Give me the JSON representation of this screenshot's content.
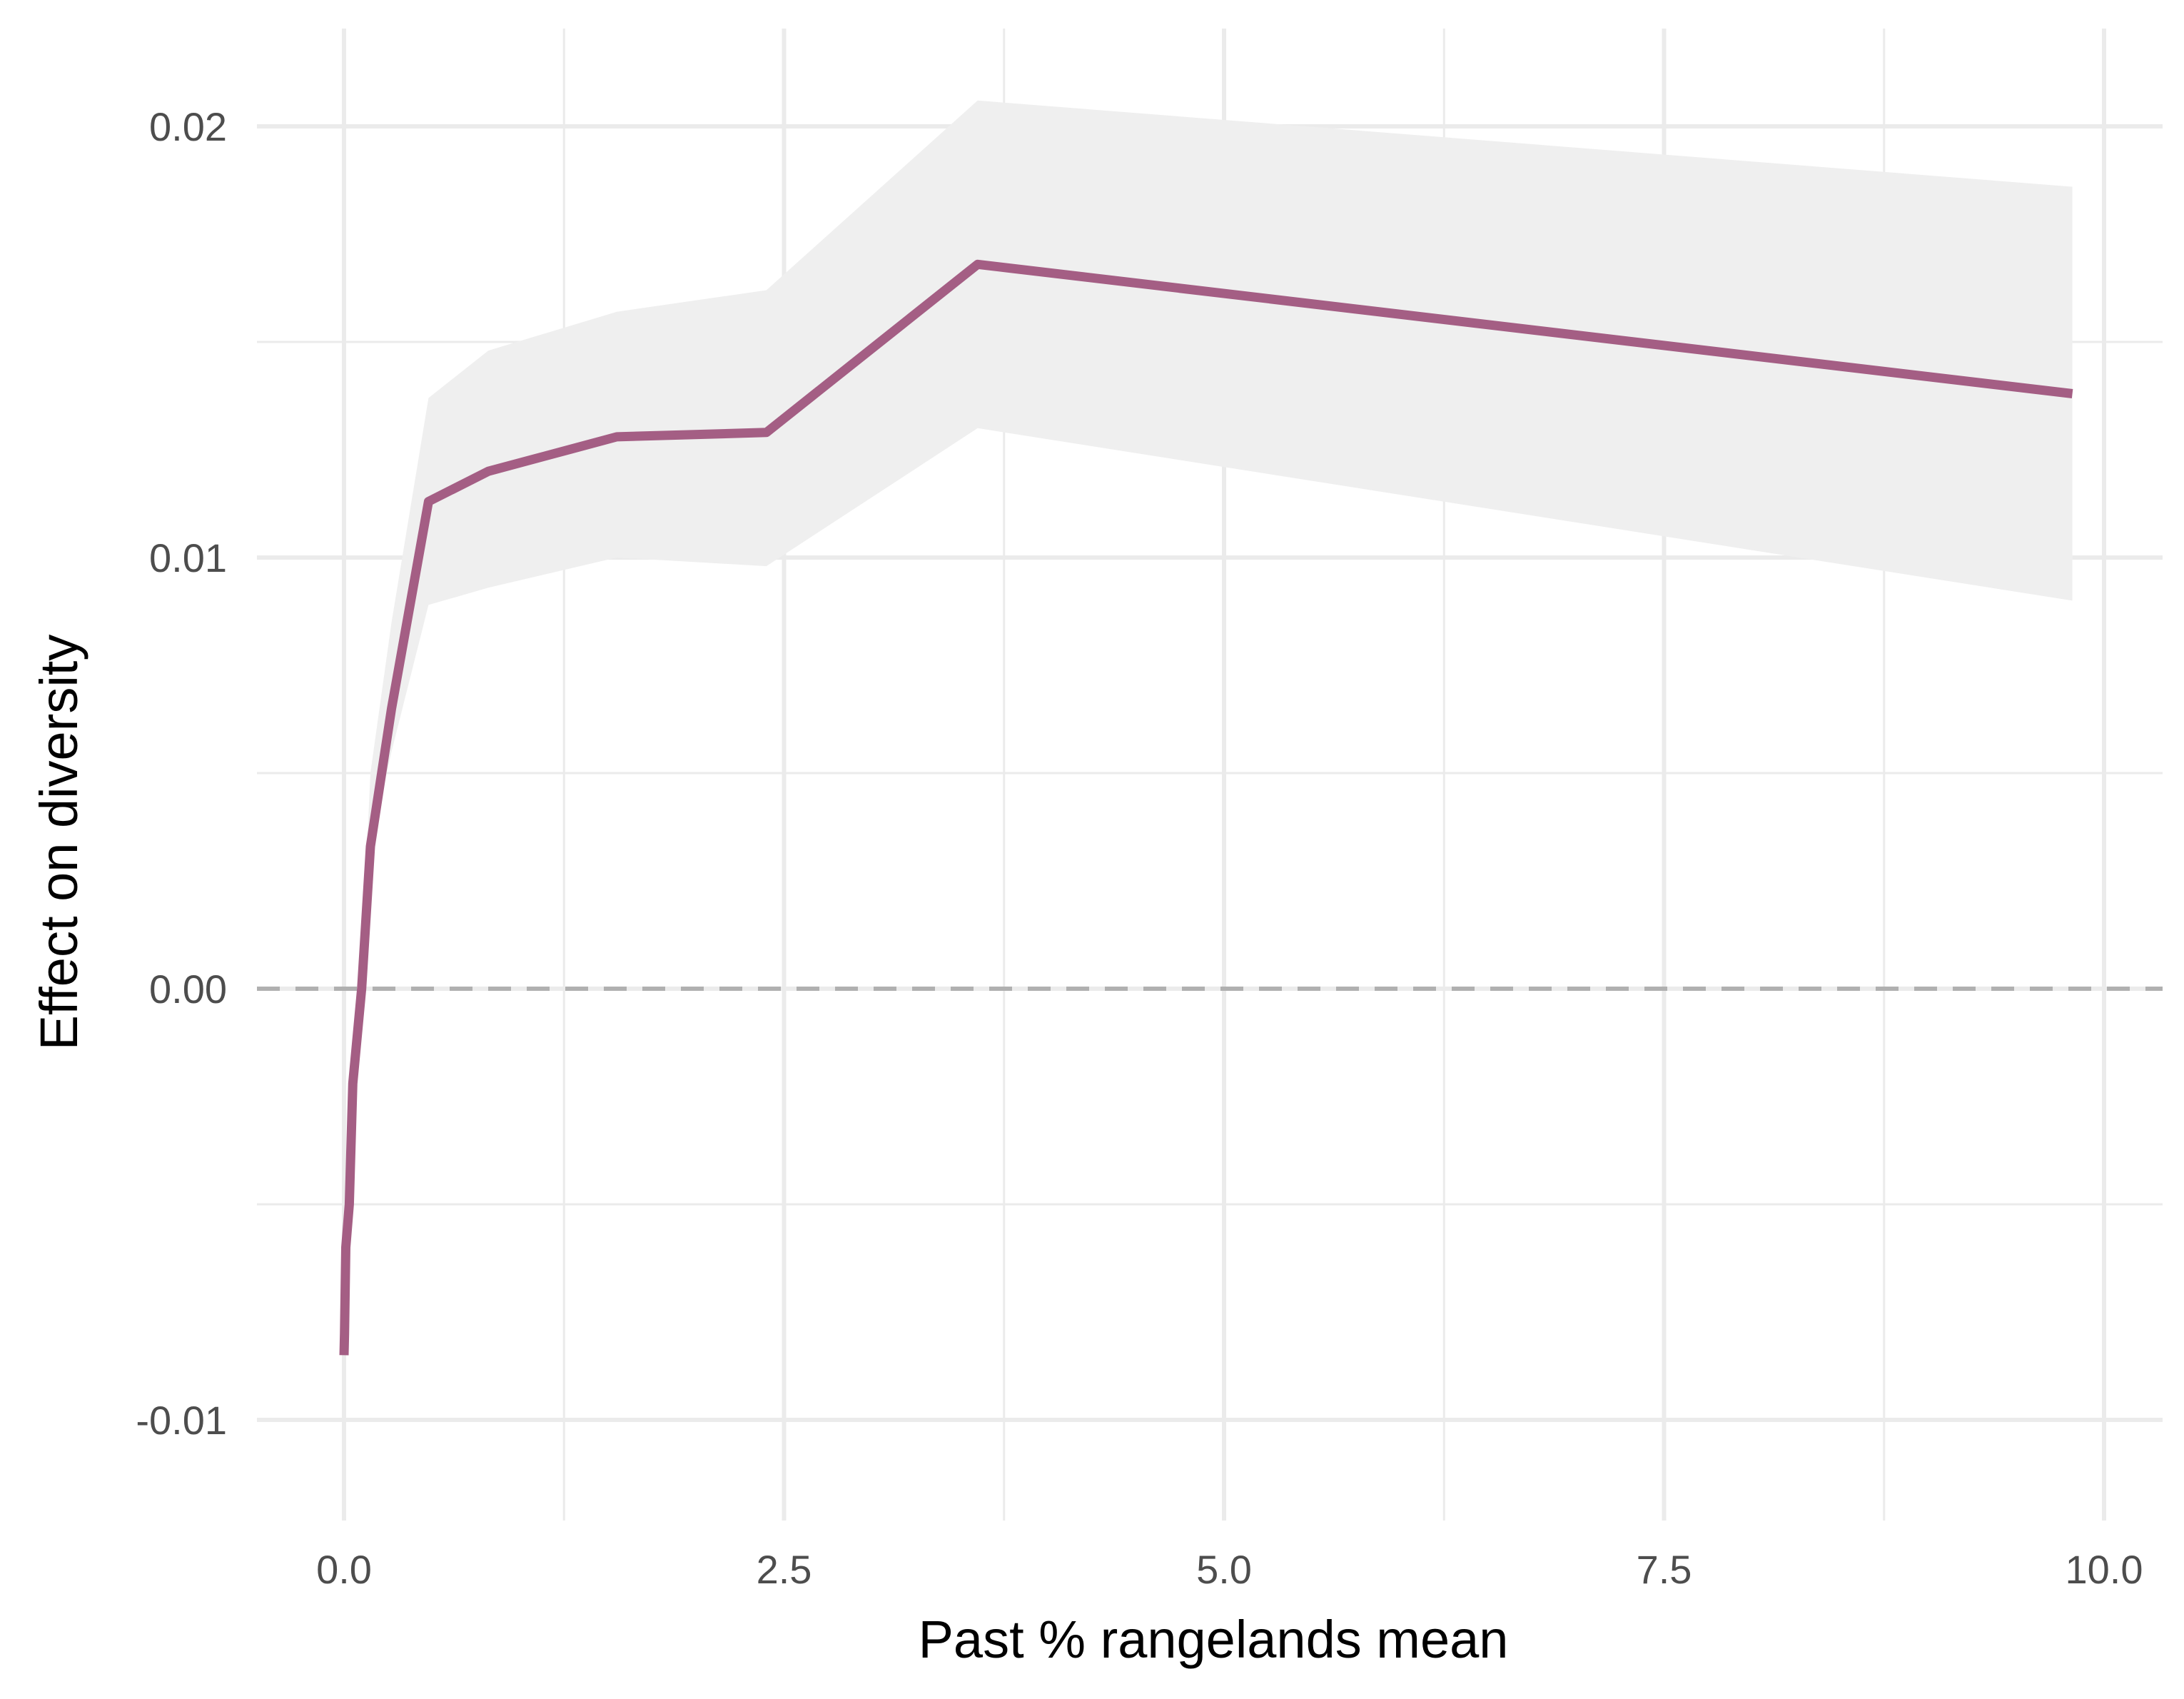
{
  "chart_data": {
    "type": "line",
    "title": "",
    "xlabel": "Past % rangelands mean",
    "ylabel": "Effect on diversity",
    "xlim": [
      -0.25,
      10.3
    ],
    "ylim": [
      -0.0121,
      0.0221
    ],
    "x_ticks": [
      0.0,
      2.5,
      5.0,
      7.5,
      10.0
    ],
    "x_tick_labels": [
      "0.0",
      "2.5",
      "5.0",
      "7.5",
      "10.0"
    ],
    "x_minor_ticks": [
      1.25,
      3.75,
      6.25,
      8.75
    ],
    "y_ticks": [
      -0.01,
      0.0,
      0.01,
      0.02
    ],
    "y_tick_labels": [
      "-0.01",
      "0.00",
      "0.01",
      "0.02"
    ],
    "y_minor_ticks": [
      -0.005,
      0.005,
      0.015
    ],
    "grid": true,
    "reference_line": {
      "y": 0.0,
      "style": "dashed"
    },
    "colors": {
      "line": "#a45e84",
      "ribbon": "#efefef",
      "grid": "#ebebeb",
      "reference": "#b0b0b0"
    },
    "series": [
      {
        "x": [
          0.0,
          0.003,
          0.01,
          0.03,
          0.05,
          0.1,
          0.15,
          0.27,
          0.48,
          0.82,
          1.55,
          2.4,
          3.6,
          9.82
        ],
        "y": [
          -0.0085,
          -0.008,
          -0.006,
          -0.005,
          -0.0022,
          0.0,
          0.0033,
          0.0065,
          0.0113,
          0.012,
          0.0128,
          0.0129,
          0.0168,
          0.0138
        ],
        "lower": [
          -0.0085,
          -0.0082,
          -0.0063,
          -0.0053,
          -0.0028,
          -0.0008,
          0.0033,
          0.0055,
          0.0089,
          0.0093,
          0.01,
          0.0098,
          0.013,
          0.009
        ],
        "upper": [
          -0.0082,
          -0.0078,
          -0.0058,
          -0.0046,
          -0.0015,
          0.0006,
          0.005,
          0.0085,
          0.0137,
          0.0148,
          0.0157,
          0.0162,
          0.0206,
          0.0186
        ]
      }
    ]
  }
}
